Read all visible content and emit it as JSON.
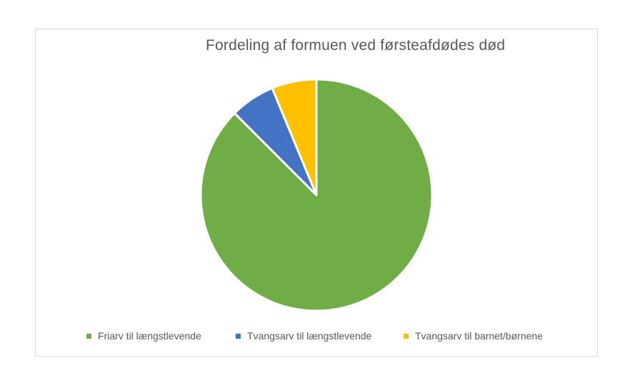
{
  "chart_data": {
    "type": "pie",
    "title": "Fordeling af formuen ved førsteafdødes død",
    "slices": [
      {
        "label": "Friarv til længstlevende",
        "value": 87.5,
        "color": "#70AD47"
      },
      {
        "label": "Tvangsarv til længstlevende",
        "value": 6.25,
        "color": "#4472C4"
      },
      {
        "label": "Tvangsarv til barnet/børnene",
        "value": 6.25,
        "color": "#FFC000"
      }
    ],
    "unit": "percent",
    "start_angle_deg": 0,
    "direction": "clockwise",
    "slice_border_color": "#FFFFFF",
    "legend_position": "bottom"
  },
  "styles": {
    "page_background": "#FFFFFF",
    "chart_background": "#FFFFFF",
    "chart_border_color": "#D9D9D9",
    "title_color": "#595959",
    "legend_text_color": "#595959"
  }
}
